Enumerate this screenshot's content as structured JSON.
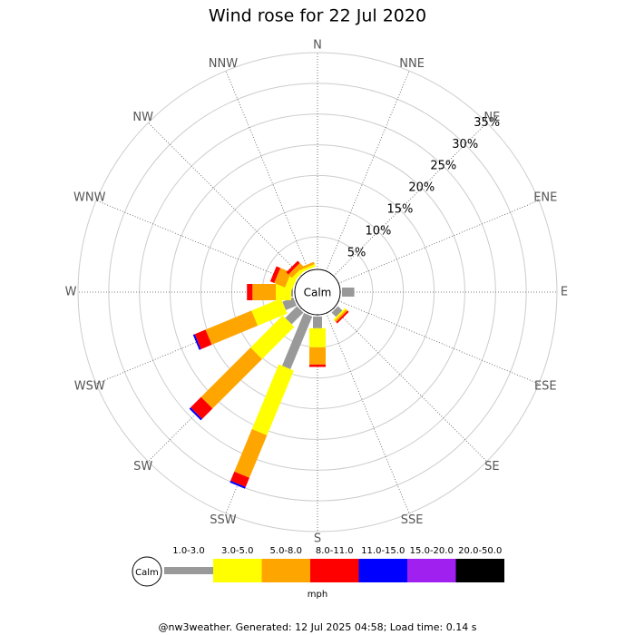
{
  "chart_data": {
    "type": "windrose",
    "title": "Wind rose for 22 Jul 2020",
    "calm_label": "Calm",
    "legend_title": "mph",
    "footer": "@nw3weather. Generated: 12 Jul 2025 04:58; Load time: 0.14 s",
    "categories": [
      "N",
      "NNE",
      "NE",
      "ENE",
      "E",
      "ESE",
      "SE",
      "SSE",
      "S",
      "SSW",
      "SW",
      "WSW",
      "W",
      "WNW",
      "NW",
      "NNW"
    ],
    "rlim": [
      0,
      35
    ],
    "rticks": [
      {
        "value": 5,
        "label": "5%"
      },
      {
        "value": 10,
        "label": "10%"
      },
      {
        "value": 15,
        "label": "15%"
      },
      {
        "value": 20,
        "label": "20%"
      },
      {
        "value": 25,
        "label": "25%"
      },
      {
        "value": 30,
        "label": "30%"
      },
      {
        "value": 35,
        "label": "35%"
      }
    ],
    "series": [
      {
        "name": "1.0-3.0",
        "color": "#999999",
        "values": [
          0,
          0,
          0,
          0,
          2,
          0,
          1,
          0,
          1.9,
          9.3,
          2.7,
          1.9,
          0.3,
          0,
          0,
          0
        ]
      },
      {
        "name": "3.0-5.0",
        "color": "#ffff00",
        "values": [
          0,
          0,
          0,
          0,
          0,
          0,
          0.3,
          0,
          3.1,
          11.4,
          7.4,
          5.2,
          2.5,
          1.2,
          0.6,
          0.4
        ]
      },
      {
        "name": "5.0-8.0",
        "color": "#ffa500",
        "values": [
          0,
          0,
          0,
          0,
          0,
          0,
          0.3,
          0,
          2.8,
          7.5,
          11.4,
          8.1,
          3.8,
          1.9,
          0.8,
          0.4
        ]
      },
      {
        "name": "8.0-11.0",
        "color": "#ff0000",
        "values": [
          0,
          0,
          0,
          0,
          0,
          0,
          0.3,
          0,
          0.4,
          1.6,
          2.4,
          1.9,
          0.9,
          0.7,
          0.5,
          0
        ]
      },
      {
        "name": "11.0-15.0",
        "color": "#0000ff",
        "values": [
          0,
          0,
          0,
          0,
          0,
          0,
          0,
          0,
          0,
          0.3,
          0.3,
          0.3,
          0,
          0,
          0,
          0
        ]
      },
      {
        "name": "15.0-20.0",
        "color": "#a020f0",
        "values": [
          0,
          0,
          0,
          0,
          0,
          0,
          0,
          0,
          0,
          0,
          0,
          0,
          0,
          0,
          0,
          0
        ]
      },
      {
        "name": "20.0-50.0",
        "color": "#000000",
        "values": [
          0,
          0,
          0,
          0,
          0,
          0,
          0,
          0,
          0,
          0,
          0,
          0,
          0,
          0,
          0,
          0
        ]
      }
    ]
  }
}
